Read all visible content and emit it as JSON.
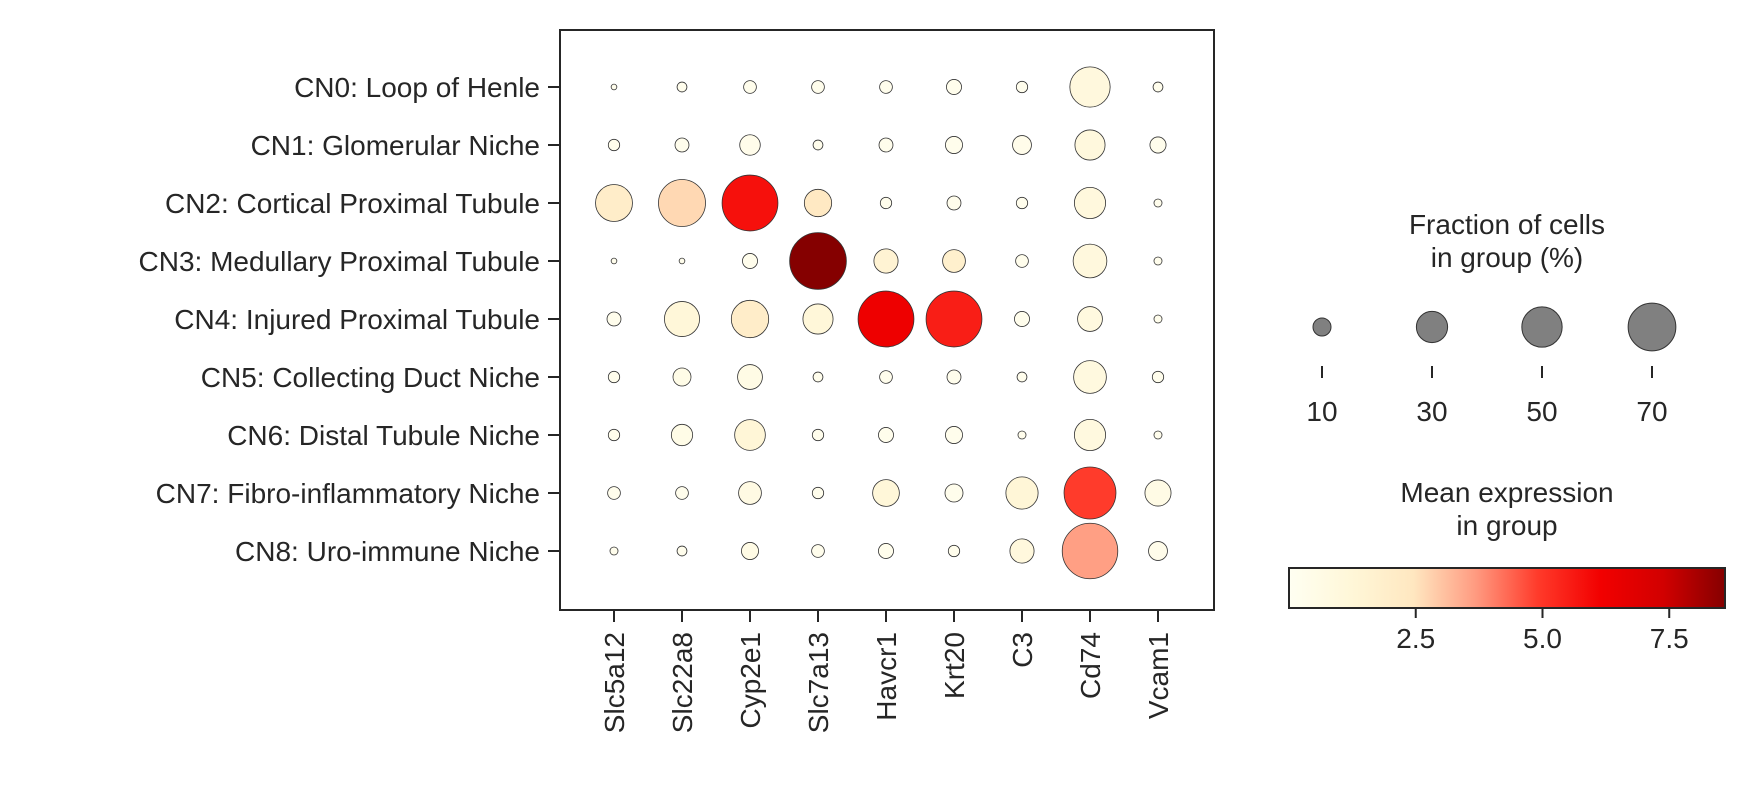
{
  "chart_data": {
    "type": "dotplot",
    "rows": [
      "CN0: Loop of Henle",
      "CN1: Glomerular Niche",
      "CN2: Cortical Proximal Tubule",
      "CN3: Medullary Proximal Tubule",
      "CN4: Injured Proximal Tubule",
      "CN5: Collecting Duct Niche",
      "CN6: Distal Tubule Niche",
      "CN7: Fibro-inflammatory Niche",
      "CN8: Uro-immune Niche"
    ],
    "columns": [
      "Slc5a12",
      "Slc22a8",
      "Cyp2e1",
      "Slc7a13",
      "Havcr1",
      "Krt20",
      "C3",
      "Cd74",
      "Vcam1"
    ],
    "fraction_pct": [
      [
        1,
        3,
        5,
        5,
        5,
        7,
        4,
        50,
        3
      ],
      [
        4,
        6,
        13,
        3,
        6,
        9,
        11,
        28,
        8
      ],
      [
        42,
        68,
        96,
        23,
        4,
        6,
        4,
        30,
        2
      ],
      [
        1,
        1,
        7,
        99,
        18,
        16,
        5,
        35,
        2
      ],
      [
        6,
        38,
        43,
        28,
        96,
        96,
        7,
        19,
        2
      ],
      [
        4,
        10,
        19,
        3,
        5,
        6,
        3,
        33,
        4
      ],
      [
        4,
        14,
        29,
        4,
        7,
        9,
        2,
        30,
        2
      ],
      [
        5,
        5,
        16,
        4,
        22,
        10,
        32,
        83,
        21
      ],
      [
        2,
        3,
        9,
        5,
        7,
        4,
        18,
        95,
        11
      ]
    ],
    "mean_expression": [
      [
        0.3,
        0.3,
        0.3,
        0.3,
        0.3,
        0.3,
        0.3,
        1.0,
        0.3
      ],
      [
        0.3,
        0.3,
        0.4,
        0.3,
        0.3,
        0.3,
        0.4,
        1.0,
        0.3
      ],
      [
        2.0,
        2.7,
        5.8,
        2.3,
        0.3,
        0.3,
        0.3,
        1.0,
        0.3
      ],
      [
        0.3,
        0.3,
        0.3,
        8.6,
        1.5,
        1.8,
        0.3,
        1.0,
        0.3
      ],
      [
        0.3,
        1.2,
        2.0,
        1.2,
        6.3,
        5.5,
        0.3,
        0.9,
        0.3
      ],
      [
        0.3,
        0.5,
        0.6,
        0.3,
        0.3,
        0.3,
        0.3,
        0.9,
        0.3
      ],
      [
        0.3,
        0.5,
        1.3,
        0.3,
        0.3,
        0.3,
        0.3,
        0.9,
        0.3
      ],
      [
        0.3,
        0.3,
        0.7,
        0.3,
        1.2,
        0.3,
        1.3,
        4.9,
        0.6
      ],
      [
        0.3,
        0.3,
        0.6,
        0.3,
        0.3,
        0.3,
        1.0,
        3.6,
        0.4
      ]
    ],
    "size_legend": {
      "title_lines": [
        "Fraction of cells",
        "in group (%)"
      ],
      "values": [
        10,
        30,
        50,
        70
      ]
    },
    "color_legend": {
      "title_lines": [
        "Mean expression",
        "in group"
      ],
      "range": [
        0,
        8.6
      ],
      "ticks": [
        2.5,
        5.0,
        7.5
      ],
      "tick_labels": [
        "2.5",
        "5.0",
        "7.5"
      ],
      "colormap": "Reds"
    },
    "colors": {
      "axis": "#262626",
      "dot_stroke": "#333333",
      "legend_dot": "#808080",
      "scale": [
        "#fffff2",
        "#fff7d8",
        "#ffe7c0",
        "#ff9a80",
        "#ff3a2a",
        "#f20000",
        "#d20000",
        "#850000"
      ]
    }
  }
}
